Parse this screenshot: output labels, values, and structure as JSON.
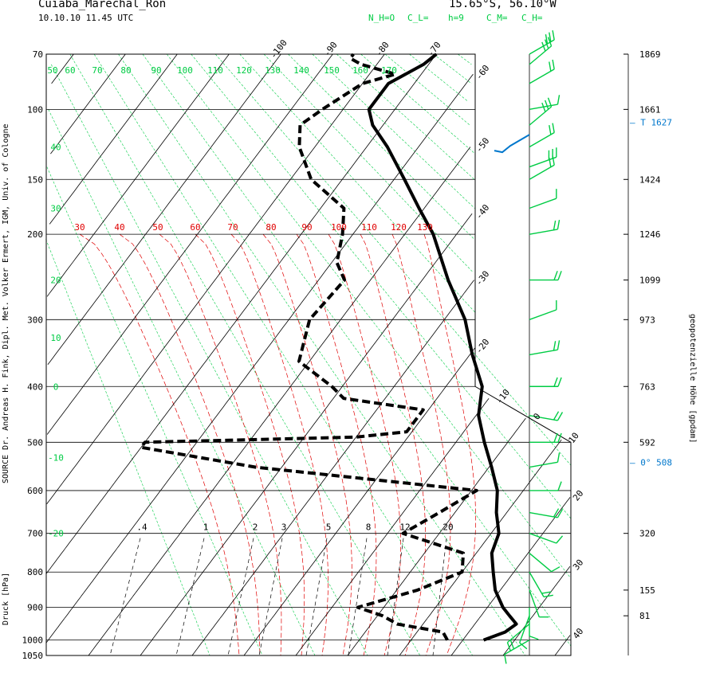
{
  "station": {
    "name": "Cuiaba_Marechal_Ron",
    "datetime": "10.10.10  11.45 UTC",
    "coords": "15.65°S, 56.10°W"
  },
  "cloud_codes": [
    "N_H=O",
    "C_L=",
    "h=9",
    "C_M=",
    "C_H="
  ],
  "source_label": "SOURCE Dr. Andreas H. Fink, Dipl. Met. Volker Ermert, IGM, Univ. of Cologne",
  "ylabel": "Druck [hPa]",
  "right_axis_label": "geopotenzielle Höhe [gpdam]",
  "colors": {
    "isotherm": "#000000",
    "dry_adiabat": "#00cc44",
    "moist_adiabat": "#e00000",
    "mixing_ratio": "#000000",
    "temperature": "#000000",
    "dewpoint": "#000000",
    "wind": "#00cc44",
    "tropopause": "#0077cc",
    "zero_level": "#0077cc"
  },
  "chart_data": {
    "type": "line",
    "diagram": "Stuve / skew-T thermodynamic diagram",
    "ylabel": "Druck [hPa]",
    "pressure_levels": [
      70,
      100,
      150,
      200,
      300,
      400,
      500,
      600,
      700,
      800,
      900,
      1000,
      1050
    ],
    "isotherm_labels": [
      -100,
      -90,
      -80,
      -70,
      -60,
      -50,
      -40,
      -30,
      -20,
      -10,
      0,
      10,
      20,
      30,
      40
    ],
    "dry_adiabat_labels_top": [
      50,
      60,
      70,
      80,
      90,
      100,
      110,
      120,
      130,
      140,
      150,
      160,
      170
    ],
    "dry_adiabat_labels_left": [
      40,
      30,
      20,
      10,
      0,
      -10,
      -20
    ],
    "moist_adiabat_labels": [
      30,
      40,
      50,
      60,
      70,
      80,
      90,
      100,
      110,
      120,
      130
    ],
    "mixing_ratio_labels": [
      ".4",
      "1",
      "2",
      "3",
      "5",
      "8",
      "12",
      "20"
    ],
    "series": [
      {
        "name": "Temperatur",
        "style": "solid",
        "points": [
          [
            1000,
            24.0
          ],
          [
            975,
            27.0
          ],
          [
            950,
            28.0
          ],
          [
            925,
            25.5
          ],
          [
            900,
            23.0
          ],
          [
            850,
            19.0
          ],
          [
            800,
            16.0
          ],
          [
            750,
            13.0
          ],
          [
            700,
            11.5
          ],
          [
            650,
            8.0
          ],
          [
            600,
            5.0
          ],
          [
            550,
            0.5
          ],
          [
            500,
            -4.5
          ],
          [
            450,
            -9.5
          ],
          [
            400,
            -13.0
          ],
          [
            350,
            -19.5
          ],
          [
            300,
            -26.0
          ],
          [
            250,
            -35.0
          ],
          [
            200,
            -44.5
          ],
          [
            175,
            -51.0
          ],
          [
            150,
            -58.0
          ],
          [
            125,
            -66.0
          ],
          [
            110,
            -72.0
          ],
          [
            100,
            -75.0
          ],
          [
            85,
            -75.0
          ],
          [
            75,
            -71.0
          ],
          [
            70,
            -70.0
          ]
        ]
      },
      {
        "name": "Taupunkt",
        "style": "dashed",
        "points": [
          [
            1000,
            17.0
          ],
          [
            975,
            15.0
          ],
          [
            950,
            5.0
          ],
          [
            925,
            1.0
          ],
          [
            900,
            -5.0
          ],
          [
            850,
            4.0
          ],
          [
            800,
            10.0
          ],
          [
            750,
            7.5
          ],
          [
            700,
            -7.0
          ],
          [
            650,
            -3.0
          ],
          [
            600,
            1.0
          ],
          [
            550,
            -45.0
          ],
          [
            510,
            -70.0
          ],
          [
            500,
            -70.0
          ],
          [
            490,
            -30.0
          ],
          [
            480,
            -21.0
          ],
          [
            440,
            -21.0
          ],
          [
            420,
            -38.0
          ],
          [
            400,
            -42.0
          ],
          [
            360,
            -52.0
          ],
          [
            300,
            -56.0
          ],
          [
            250,
            -55.0
          ],
          [
            230,
            -59.0
          ],
          [
            200,
            -62.0
          ],
          [
            175,
            -65.5
          ],
          [
            150,
            -76.0
          ],
          [
            125,
            -83.0
          ],
          [
            110,
            -86.0
          ],
          [
            100,
            -84.0
          ],
          [
            85,
            -80.0
          ],
          [
            80,
            -75.0
          ],
          [
            75,
            -83.0
          ],
          [
            72,
            -86.0
          ],
          [
            70,
            -86.0
          ]
        ]
      }
    ],
    "tropopause": {
      "label": "T",
      "value": 1627
    },
    "zero_degree_level": {
      "label": "0°",
      "value": 508
    },
    "geopotential_height_gpdam": [
      {
        "p": 70,
        "z": "1869"
      },
      {
        "p": 100,
        "z": "1661"
      },
      {
        "p": 150,
        "z": "1424"
      },
      {
        "p": 200,
        "z": "1246"
      },
      {
        "p": 250,
        "z": "1099"
      },
      {
        "p": 300,
        "z": "973"
      },
      {
        "p": 400,
        "z": "763"
      },
      {
        "p": 500,
        "z": "592"
      },
      {
        "p": 700,
        "z": "320"
      },
      {
        "p": 850,
        "z": "155"
      },
      {
        "p": 925,
        "z": "81"
      }
    ],
    "wind_barbs": [
      {
        "p": 1000,
        "dir": 240,
        "kt": 10
      },
      {
        "p": 950,
        "dir": 230,
        "kt": 15
      },
      {
        "p": 925,
        "dir": 200,
        "kt": 10
      },
      {
        "p": 900,
        "dir": 180,
        "kt": 10
      },
      {
        "p": 850,
        "dir": 160,
        "kt": 5
      },
      {
        "p": 800,
        "dir": 150,
        "kt": 15
      },
      {
        "p": 750,
        "dir": 130,
        "kt": 10
      },
      {
        "p": 700,
        "dir": 110,
        "kt": 10
      },
      {
        "p": 650,
        "dir": 100,
        "kt": 15
      },
      {
        "p": 600,
        "dir": 90,
        "kt": 10
      },
      {
        "p": 550,
        "dir": 80,
        "kt": 10
      },
      {
        "p": 500,
        "dir": 90,
        "kt": 15
      },
      {
        "p": 450,
        "dir": 100,
        "kt": 15
      },
      {
        "p": 400,
        "dir": 90,
        "kt": 15
      },
      {
        "p": 350,
        "dir": 80,
        "kt": 15
      },
      {
        "p": 300,
        "dir": 70,
        "kt": 10
      },
      {
        "p": 250,
        "dir": 90,
        "kt": 15
      },
      {
        "p": 200,
        "dir": 80,
        "kt": 15
      },
      {
        "p": 175,
        "dir": 70,
        "kt": 10
      },
      {
        "p": 150,
        "dir": 60,
        "kt": 15
      },
      {
        "p": 140,
        "dir": 70,
        "kt": 25
      },
      {
        "p": 125,
        "dir": 60,
        "kt": 15
      },
      {
        "p": 110,
        "dir": 50,
        "kt": 25
      },
      {
        "p": 100,
        "dir": 80,
        "kt": 10
      },
      {
        "p": 85,
        "dir": 60,
        "kt": 15
      },
      {
        "p": 75,
        "dir": 50,
        "kt": 30
      },
      {
        "p": 70,
        "dir": 60,
        "kt": 25
      }
    ]
  }
}
